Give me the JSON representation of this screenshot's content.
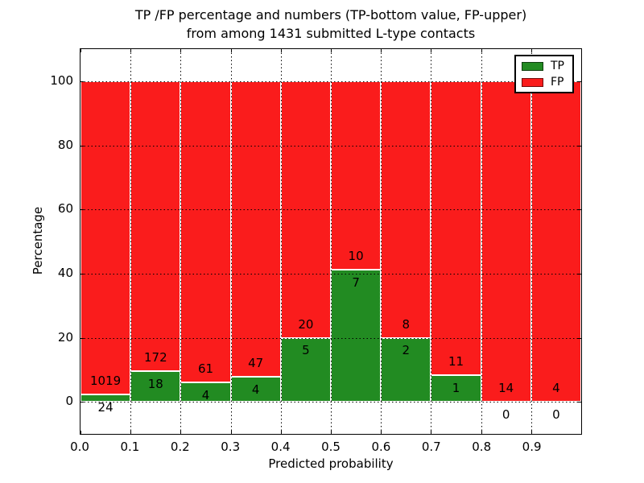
{
  "title": {
    "line1": "TP /FP percentage and numbers (TP-bottom value, FP-upper)",
    "line2": "from among 1431 submitted L-type contacts"
  },
  "chart_data": {
    "type": "bar",
    "stacked": true,
    "title": "TP /FP percentage and numbers (TP-bottom value, FP-upper)\nfrom among 1431 submitted L-type contacts",
    "xlabel": "Predicted probability",
    "ylabel": "Percentage",
    "xlim": [
      0.0,
      1.0
    ],
    "ylim": [
      -10,
      110
    ],
    "x_ticks": [
      "0.0",
      "0.1",
      "0.2",
      "0.3",
      "0.4",
      "0.5",
      "0.6",
      "0.7",
      "0.8",
      "0.9"
    ],
    "y_ticks": [
      0,
      20,
      40,
      60,
      80,
      100
    ],
    "grid": {
      "style": "dotted",
      "color": "#000000",
      "drawn_above_bars": true
    },
    "colors": {
      "tp": "#228b22",
      "fp": "#fa1c1c",
      "bar_edge": "#ffffff"
    },
    "legend": {
      "position": "upper-right",
      "entries": [
        {
          "name": "TP",
          "color": "#228b22"
        },
        {
          "name": "FP",
          "color": "#fa1c1c"
        }
      ]
    },
    "total_contacts": 1431,
    "bins": [
      {
        "range": [
          0.0,
          0.1
        ],
        "tp_count": 24,
        "fp_count": 1019,
        "tp_percent": 2.3
      },
      {
        "range": [
          0.1,
          0.2
        ],
        "tp_count": 18,
        "fp_count": 172,
        "tp_percent": 9.47
      },
      {
        "range": [
          0.2,
          0.3
        ],
        "tp_count": 4,
        "fp_count": 61,
        "tp_percent": 6.15
      },
      {
        "range": [
          0.3,
          0.4
        ],
        "tp_count": 4,
        "fp_count": 47,
        "tp_percent": 7.84
      },
      {
        "range": [
          0.4,
          0.5
        ],
        "tp_count": 5,
        "fp_count": 20,
        "tp_percent": 20.0
      },
      {
        "range": [
          0.5,
          0.6
        ],
        "tp_count": 7,
        "fp_count": 10,
        "tp_percent": 41.18
      },
      {
        "range": [
          0.6,
          0.7
        ],
        "tp_count": 2,
        "fp_count": 8,
        "tp_percent": 20.0
      },
      {
        "range": [
          0.7,
          0.8
        ],
        "tp_count": 1,
        "fp_count": 11,
        "tp_percent": 8.33
      },
      {
        "range": [
          0.8,
          0.9
        ],
        "tp_count": 0,
        "fp_count": 14,
        "tp_percent": 0.0
      },
      {
        "range": [
          0.9,
          1.0
        ],
        "tp_count": 0,
        "fp_count": 4,
        "tp_percent": 0.0
      }
    ]
  }
}
